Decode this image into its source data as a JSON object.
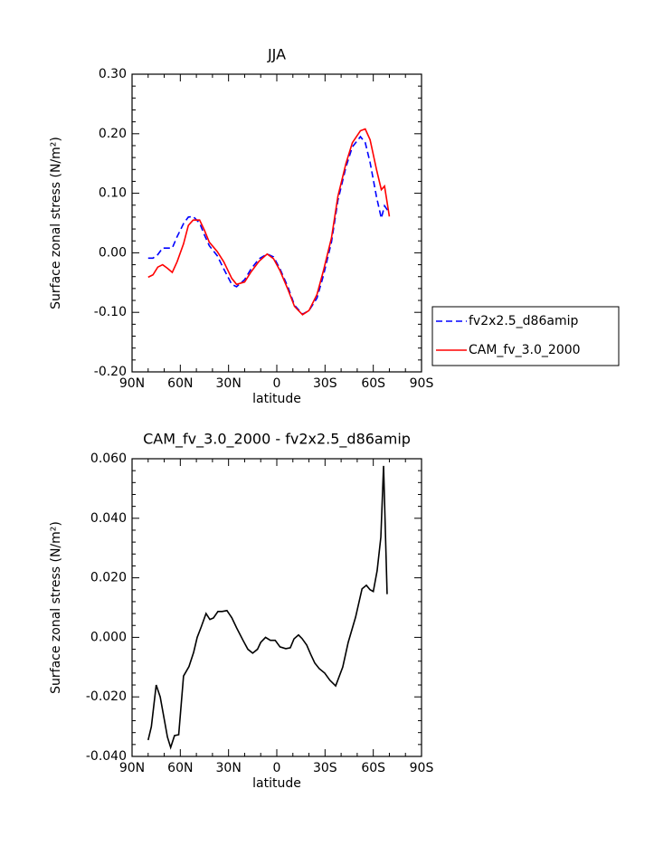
{
  "chart_data": [
    {
      "type": "line",
      "title": "JJA",
      "xlabel": "latitude",
      "ylabel": "Surface zonal stress (N/m²)",
      "x": [
        80,
        77,
        74,
        71,
        68,
        65,
        62,
        58,
        55,
        52,
        48,
        45,
        42,
        37,
        33,
        28,
        25,
        20,
        16,
        11,
        6,
        2,
        -2,
        -7,
        -11,
        -16,
        -20,
        -25,
        -29,
        -34,
        -38,
        -43,
        -47,
        -52,
        -55,
        -58,
        -62,
        -65,
        -67,
        -70
      ],
      "series": [
        {
          "name": "fv2x2.5_d86amip",
          "color": "#0000ff",
          "linestyle": "dashed",
          "values": [
            -0.009,
            -0.009,
            -0.003,
            0.008,
            0.008,
            0.008,
            0.027,
            0.049,
            0.06,
            0.061,
            0.05,
            0.03,
            0.012,
            -0.005,
            -0.027,
            -0.053,
            -0.057,
            -0.045,
            -0.027,
            -0.01,
            -0.002,
            -0.007,
            -0.027,
            -0.058,
            -0.088,
            -0.103,
            -0.097,
            -0.076,
            -0.038,
            0.018,
            0.088,
            0.144,
            0.178,
            0.195,
            0.185,
            0.152,
            0.094,
            0.058,
            0.079,
            0.067
          ]
        },
        {
          "name": "CAM_fv_3.0_2000",
          "color": "#ff0000",
          "linestyle": "solid",
          "values": [
            -0.041,
            -0.037,
            -0.024,
            -0.02,
            -0.026,
            -0.033,
            -0.015,
            0.015,
            0.046,
            0.055,
            0.055,
            0.038,
            0.018,
            0.002,
            -0.015,
            -0.043,
            -0.053,
            -0.049,
            -0.032,
            -0.014,
            -0.002,
            -0.01,
            -0.03,
            -0.062,
            -0.09,
            -0.104,
            -0.097,
            -0.07,
            -0.03,
            0.025,
            0.095,
            0.15,
            0.185,
            0.205,
            0.208,
            0.19,
            0.14,
            0.106,
            0.112,
            0.061
          ]
        }
      ],
      "xlim": [
        90,
        -90
      ],
      "xticks": [
        {
          "value": 90,
          "label": "90N"
        },
        {
          "value": 60,
          "label": "60N"
        },
        {
          "value": 30,
          "label": "30N"
        },
        0,
        {
          "value": -30,
          "label": "30S"
        },
        {
          "value": -60,
          "label": "60S"
        },
        {
          "value": -90,
          "label": "90S"
        }
      ],
      "ylim": [
        -0.2,
        0.3
      ],
      "yticks": [
        {
          "value": -0.2,
          "label": "-0.20"
        },
        {
          "value": -0.1,
          "label": "-0.10"
        },
        {
          "value": 0,
          "label": "0.00"
        },
        {
          "value": 0.1,
          "label": "0.10"
        },
        {
          "value": 0.2,
          "label": "0.20"
        },
        {
          "value": 0.3,
          "label": "0.30"
        }
      ],
      "legend": "outside-right"
    },
    {
      "type": "line",
      "title": "CAM_fv_3.0_2000 - fv2x2.5_d86amip",
      "xlabel": "latitude",
      "ylabel": "Surface zonal stress (N/m²)",
      "x": [
        80,
        78,
        75,
        72.5,
        70,
        68,
        66,
        63.6,
        61,
        58,
        54.6,
        51.7,
        49.5,
        47,
        44,
        41.6,
        39.4,
        36.6,
        34,
        31,
        28,
        25,
        21,
        18,
        15,
        12,
        10,
        7,
        4,
        1,
        -2,
        -5.6,
        -8.4,
        -10.7,
        -13.5,
        -15.7,
        -18.6,
        -21,
        -23.6,
        -26.4,
        -29.8,
        -33,
        -36.6,
        -41,
        -44.4,
        -49,
        -53,
        -55.7,
        -58,
        -60,
        -62.4,
        -64.7,
        -66.4,
        -68.6
      ],
      "values": [
        -0.0345,
        -0.03,
        -0.016,
        -0.02,
        -0.0275,
        -0.0335,
        -0.037,
        -0.033,
        -0.0327,
        -0.013,
        -0.0098,
        -0.005,
        0.0,
        0.0035,
        0.008,
        0.006,
        0.0065,
        0.0087,
        0.0087,
        0.009,
        0.0066,
        0.0032,
        -0.001,
        -0.004,
        -0.0053,
        -0.004,
        -0.0017,
        0.0,
        -0.001,
        -0.001,
        -0.0032,
        -0.0038,
        -0.0035,
        -0.0005,
        0.0008,
        -0.0004,
        -0.0026,
        -0.0056,
        -0.0086,
        -0.0105,
        -0.012,
        -0.0144,
        -0.0163,
        -0.01,
        -0.0017,
        0.0068,
        0.0163,
        0.0175,
        0.016,
        0.0154,
        0.0224,
        0.0336,
        0.0576,
        0.0145
      ],
      "color": "#000000",
      "xlim": [
        90,
        -90
      ],
      "xticks": [
        {
          "value": 90,
          "label": "90N"
        },
        {
          "value": 60,
          "label": "60N"
        },
        {
          "value": 30,
          "label": "30N"
        },
        0,
        {
          "value": -30,
          "label": "30S"
        },
        {
          "value": -60,
          "label": "60S"
        },
        {
          "value": -90,
          "label": "90S"
        }
      ],
      "ylim": [
        -0.04,
        0.06
      ],
      "yticks": [
        {
          "value": -0.04,
          "label": "-0.040"
        },
        {
          "value": -0.02,
          "label": "-0.020"
        },
        {
          "value": 0,
          "label": "0.000"
        },
        {
          "value": 0.02,
          "label": "0.020"
        },
        {
          "value": 0.04,
          "label": "0.040"
        },
        {
          "value": 0.06,
          "label": "0.060"
        }
      ]
    }
  ]
}
